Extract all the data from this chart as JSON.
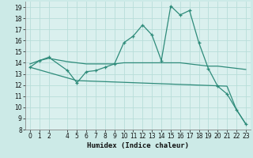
{
  "xlabel": "Humidex (Indice chaleur)",
  "xlim": [
    -0.5,
    23.5
  ],
  "ylim": [
    8,
    19.5
  ],
  "yticks": [
    8,
    9,
    10,
    11,
    12,
    13,
    14,
    15,
    16,
    17,
    18,
    19
  ],
  "xticks": [
    0,
    1,
    2,
    4,
    5,
    6,
    7,
    8,
    9,
    10,
    11,
    12,
    13,
    14,
    15,
    16,
    17,
    18,
    19,
    20,
    21,
    22,
    23
  ],
  "bg_color": "#cceae7",
  "grid_bg_color": "#daf0ee",
  "line_color": "#2e8b7a",
  "grid_color": "#b8ddd9",
  "curve1_x": [
    0,
    1,
    2,
    4,
    5,
    6,
    7,
    8,
    9,
    10,
    11,
    12,
    13,
    14,
    15,
    16,
    17,
    18,
    19,
    20,
    21,
    22,
    23
  ],
  "curve1_y": [
    13.6,
    14.2,
    14.5,
    13.3,
    12.2,
    13.2,
    13.3,
    13.6,
    13.9,
    15.8,
    16.4,
    17.4,
    16.5,
    14.2,
    19.1,
    18.3,
    18.7,
    15.8,
    13.5,
    11.9,
    11.2,
    9.8,
    8.5
  ],
  "curve2_x": [
    0,
    1,
    2,
    4,
    5,
    6,
    7,
    8,
    9,
    10,
    11,
    12,
    13,
    14,
    15,
    16,
    17,
    18,
    19,
    20,
    21,
    22,
    23
  ],
  "curve2_y": [
    13.9,
    14.2,
    14.4,
    14.1,
    14.0,
    13.9,
    13.9,
    13.9,
    13.9,
    14.0,
    14.0,
    14.0,
    14.0,
    14.0,
    14.0,
    14.0,
    13.9,
    13.8,
    13.7,
    13.7,
    13.6,
    13.5,
    13.4
  ],
  "curve3_x": [
    0,
    5,
    21,
    22,
    23
  ],
  "curve3_y": [
    13.6,
    12.4,
    11.9,
    9.8,
    8.5
  ]
}
